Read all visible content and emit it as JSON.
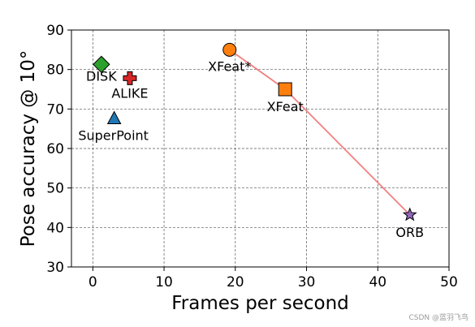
{
  "chart_data": {
    "type": "scatter",
    "xlabel": "Frames per second",
    "ylabel": "Pose accuracy @ 10°",
    "xlim": [
      -3,
      50
    ],
    "ylim": [
      30,
      90
    ],
    "x_ticks": [
      0,
      10,
      20,
      30,
      40,
      50
    ],
    "y_ticks": [
      30,
      40,
      50,
      60,
      70,
      80,
      90
    ],
    "grid": true,
    "points": [
      {
        "label": "DISK",
        "x": 1.2,
        "y": 81.3,
        "marker": "diamond",
        "color": "#2ca02c"
      },
      {
        "label": "ALIKE",
        "x": 5.2,
        "y": 77.8,
        "marker": "plus",
        "color": "#d62728"
      },
      {
        "label": "SuperPoint",
        "x": 3.0,
        "y": 67.5,
        "marker": "triangle",
        "color": "#1f77b4"
      },
      {
        "label": "XFeat*",
        "x": 19.2,
        "y": 85.0,
        "marker": "circle",
        "color": "#ff7f0e"
      },
      {
        "label": "XFeat",
        "x": 27.0,
        "y": 75.0,
        "marker": "square",
        "color": "#ff7f0e"
      },
      {
        "label": "ORB",
        "x": 44.5,
        "y": 43.2,
        "marker": "star",
        "color": "#9467bd"
      }
    ],
    "connecting_line": {
      "through": [
        "XFeat*",
        "XFeat",
        "ORB"
      ],
      "color": "#f08080"
    }
  },
  "watermark": "CSDN @蓝羽飞鸟"
}
